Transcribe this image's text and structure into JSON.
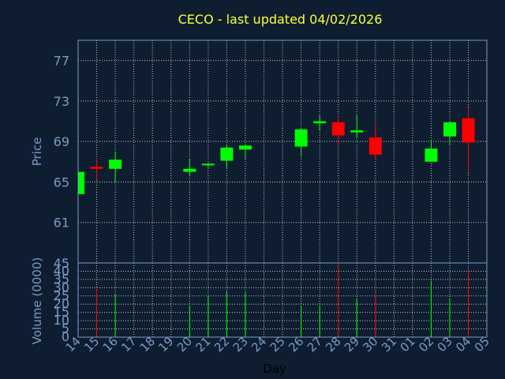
{
  "chart_data": {
    "type": "candlestick",
    "title": "CECO - last updated 04/02/2026",
    "xlabel": "Day",
    "ylabel_price": "Price",
    "ylabel_volume": "Volume (0000)",
    "price_ylim": [
      57,
      79
    ],
    "price_ticks": [
      "61",
      "65",
      "69",
      "73",
      "77"
    ],
    "volume_top_label": "45",
    "volume_ylim": [
      0,
      45
    ],
    "volume_ticks": [
      "0",
      "5",
      "10",
      "15",
      "20",
      "25",
      "30",
      "35",
      "40"
    ],
    "x_ticks": [
      "14",
      "15",
      "16",
      "17",
      "18",
      "19",
      "20",
      "21",
      "22",
      "23",
      "24",
      "25",
      "26",
      "27",
      "28",
      "29",
      "30",
      "31",
      "01",
      "02",
      "03",
      "04",
      "05"
    ],
    "grid": true,
    "colors": {
      "up": "#00ff00",
      "down": "#ff0000",
      "background": "#0e1e30",
      "title": "#ffff33",
      "axis_text": "#7a9cc6",
      "grid": "#ffffff"
    },
    "candles": [
      {
        "day": "14",
        "open": 63.8,
        "high": 66.0,
        "low": 63.8,
        "close": 66.0,
        "volume": 0
      },
      {
        "day": "15",
        "open": 66.5,
        "high": 67.3,
        "low": 65.2,
        "close": 66.3,
        "volume": 29
      },
      {
        "day": "16",
        "open": 66.3,
        "high": 68.0,
        "low": 65.0,
        "close": 67.2,
        "volume": 26
      },
      {
        "day": "20",
        "open": 66.0,
        "high": 67.3,
        "low": 65.6,
        "close": 66.3,
        "volume": 19
      },
      {
        "day": "21",
        "open": 66.7,
        "high": 66.9,
        "low": 66.4,
        "close": 66.8,
        "volume": 25
      },
      {
        "day": "22",
        "open": 67.1,
        "high": 68.6,
        "low": 66.3,
        "close": 68.4,
        "volume": 28
      },
      {
        "day": "23",
        "open": 68.2,
        "high": 68.7,
        "low": 67.3,
        "close": 68.6,
        "volume": 27
      },
      {
        "day": "26",
        "open": 68.5,
        "high": 70.3,
        "low": 67.6,
        "close": 70.2,
        "volume": 19
      },
      {
        "day": "27",
        "open": 70.8,
        "high": 71.6,
        "low": 70.1,
        "close": 71.0,
        "volume": 19
      },
      {
        "day": "28",
        "open": 70.9,
        "high": 71.3,
        "low": 68.6,
        "close": 69.6,
        "volume": 45
      },
      {
        "day": "29",
        "open": 69.9,
        "high": 71.6,
        "low": 69.3,
        "close": 70.1,
        "volume": 23
      },
      {
        "day": "30",
        "open": 69.4,
        "high": 70.6,
        "low": 67.2,
        "close": 67.7,
        "volume": 27
      },
      {
        "day": "02",
        "open": 67.0,
        "high": 69.1,
        "low": 67.0,
        "close": 68.3,
        "volume": 34
      },
      {
        "day": "03",
        "open": 69.5,
        "high": 71.0,
        "low": 68.6,
        "close": 70.9,
        "volume": 23
      },
      {
        "day": "04",
        "open": 71.3,
        "high": 72.3,
        "low": 65.9,
        "close": 68.9,
        "volume": 41
      }
    ]
  }
}
